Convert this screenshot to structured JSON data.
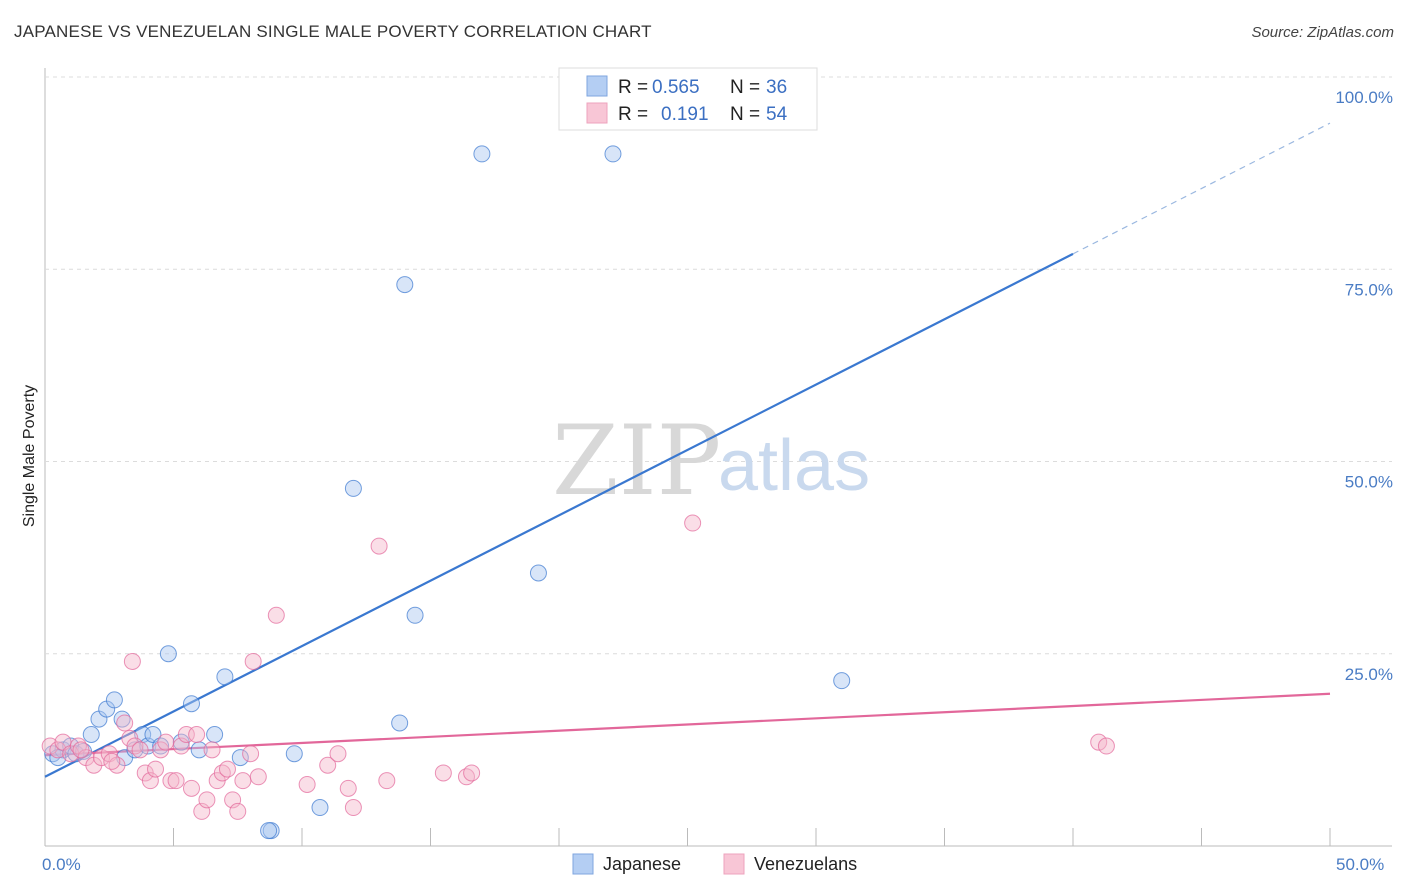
{
  "header": {
    "title": "JAPANESE VS VENEZUELAN SINGLE MALE POVERTY CORRELATION CHART",
    "source": "Source: ZipAtlas.com"
  },
  "watermark": {
    "zip": "ZIP",
    "atlas": "atlas"
  },
  "legend": {
    "rows": [
      {
        "r_label": "R =",
        "r_value": "0.565",
        "n_label": "N =",
        "n_value": "36",
        "color": "#a9c6f0"
      },
      {
        "r_label": "R =",
        "r_value": "0.191",
        "n_label": "N =",
        "n_value": "54",
        "color": "#f5b5c9"
      }
    ]
  },
  "bottom_legend": {
    "japanese": "Japanese",
    "venezuelans": "Venezuelans"
  },
  "chart_data": {
    "type": "scatter",
    "title": "JAPANESE VS VENEZUELAN SINGLE MALE POVERTY CORRELATION CHART",
    "xlabel": "",
    "ylabel": "Single Male Poverty",
    "xlim": [
      0,
      50
    ],
    "ylim": [
      0,
      100
    ],
    "x_tick_labels": [
      "0.0%",
      "50.0%"
    ],
    "y_tick_labels": [
      "100.0%",
      "75.0%",
      "50.0%",
      "25.0%"
    ],
    "y_tick_values": [
      100,
      75,
      50,
      25
    ],
    "series": [
      {
        "name": "Japanese",
        "color": "#3a78d0",
        "fill": "#a9c6f0",
        "trend": {
          "x": [
            0,
            40
          ],
          "y": [
            9.0,
            77.0
          ],
          "dashed_to": [
            50,
            94.0
          ]
        },
        "points": [
          [
            0.3,
            12.0
          ],
          [
            0.7,
            12.5
          ],
          [
            1.0,
            13.0
          ],
          [
            1.2,
            12.0
          ],
          [
            1.5,
            12.3
          ],
          [
            1.8,
            14.5
          ],
          [
            2.1,
            16.5
          ],
          [
            2.4,
            17.8
          ],
          [
            2.7,
            19.0
          ],
          [
            3.0,
            16.5
          ],
          [
            3.1,
            11.5
          ],
          [
            3.5,
            12.5
          ],
          [
            3.8,
            14.5
          ],
          [
            4.0,
            13.0
          ],
          [
            4.2,
            14.5
          ],
          [
            4.8,
            25.0
          ],
          [
            4.5,
            13.0
          ],
          [
            5.3,
            13.5
          ],
          [
            5.7,
            18.5
          ],
          [
            6.0,
            12.5
          ],
          [
            6.6,
            14.5
          ],
          [
            7.0,
            22.0
          ],
          [
            7.6,
            11.5
          ],
          [
            8.8,
            2.0
          ],
          [
            9.7,
            12.0
          ],
          [
            10.7,
            5.0
          ],
          [
            12.0,
            46.5
          ],
          [
            13.8,
            16.0
          ],
          [
            14.0,
            73.0
          ],
          [
            14.4,
            30.0
          ],
          [
            17.0,
            90.0
          ],
          [
            19.2,
            35.5
          ],
          [
            22.1,
            90.0
          ],
          [
            31.0,
            21.5
          ],
          [
            8.7,
            2.0
          ],
          [
            0.5,
            11.5
          ]
        ]
      },
      {
        "name": "Venezuelans",
        "color": "#e2679a",
        "fill": "#f5b5c9",
        "trend": {
          "x": [
            0,
            50
          ],
          "y": [
            11.8,
            19.8
          ]
        },
        "points": [
          [
            0.2,
            13.0
          ],
          [
            0.5,
            12.5
          ],
          [
            0.7,
            13.5
          ],
          [
            1.0,
            12.0
          ],
          [
            1.3,
            13.0
          ],
          [
            1.6,
            11.5
          ],
          [
            1.9,
            10.5
          ],
          [
            2.2,
            11.5
          ],
          [
            2.5,
            12.0
          ],
          [
            2.8,
            10.5
          ],
          [
            3.1,
            16.0
          ],
          [
            3.3,
            14.0
          ],
          [
            3.5,
            13.0
          ],
          [
            3.4,
            24.0
          ],
          [
            3.7,
            12.5
          ],
          [
            3.9,
            9.5
          ],
          [
            4.1,
            8.5
          ],
          [
            4.3,
            10.0
          ],
          [
            4.5,
            12.5
          ],
          [
            4.7,
            13.5
          ],
          [
            4.9,
            8.5
          ],
          [
            5.1,
            8.5
          ],
          [
            5.3,
            13.0
          ],
          [
            5.5,
            14.5
          ],
          [
            5.7,
            7.5
          ],
          [
            5.9,
            14.5
          ],
          [
            6.1,
            4.5
          ],
          [
            6.3,
            6.0
          ],
          [
            6.5,
            12.5
          ],
          [
            6.7,
            8.5
          ],
          [
            6.9,
            9.5
          ],
          [
            7.1,
            10.0
          ],
          [
            7.3,
            6.0
          ],
          [
            7.5,
            4.5
          ],
          [
            7.7,
            8.5
          ],
          [
            8.0,
            12.0
          ],
          [
            8.1,
            24.0
          ],
          [
            8.3,
            9.0
          ],
          [
            9.0,
            30.0
          ],
          [
            10.2,
            8.0
          ],
          [
            11.0,
            10.5
          ],
          [
            11.4,
            12.0
          ],
          [
            11.8,
            7.5
          ],
          [
            12.0,
            5.0
          ],
          [
            13.0,
            39.0
          ],
          [
            13.3,
            8.5
          ],
          [
            15.5,
            9.5
          ],
          [
            16.4,
            9.0
          ],
          [
            16.6,
            9.5
          ],
          [
            25.2,
            42.0
          ],
          [
            41.0,
            13.5
          ],
          [
            41.3,
            13.0
          ],
          [
            1.4,
            12.5
          ],
          [
            2.6,
            11.0
          ]
        ]
      }
    ]
  }
}
